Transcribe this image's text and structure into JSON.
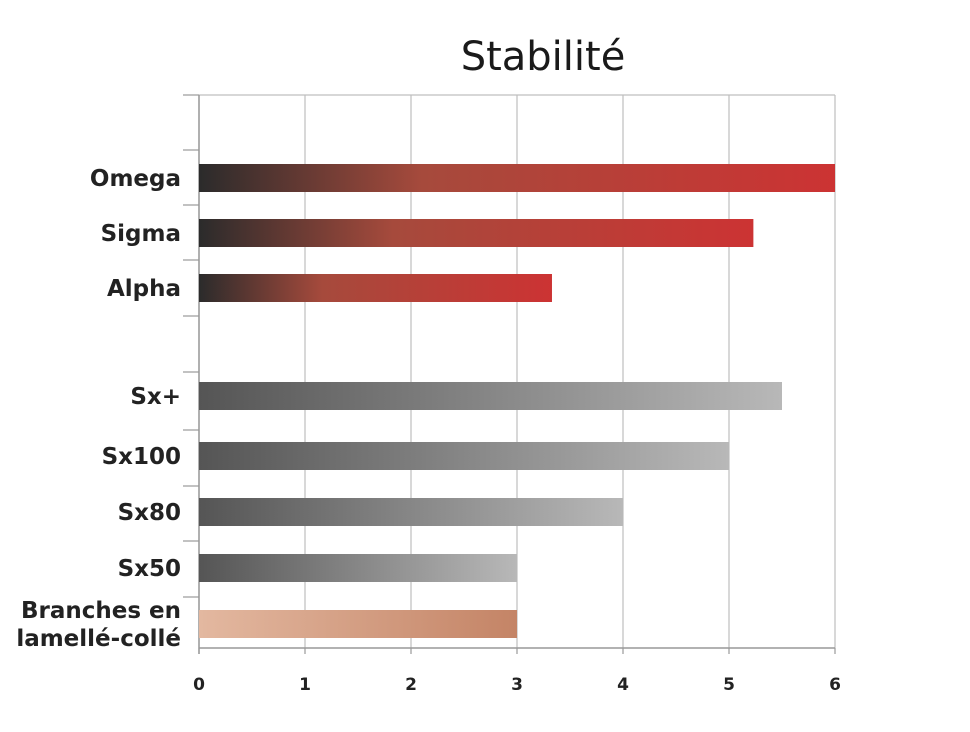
{
  "chart_data": {
    "type": "bar",
    "orientation": "horizontal",
    "title": "Stabilité",
    "xlabel": "",
    "ylabel": "",
    "xlim": [
      0,
      6
    ],
    "xticks": [
      "0",
      "1",
      "2",
      "3",
      "4",
      "5",
      "6"
    ],
    "grid": true,
    "legend": "none",
    "categories": [
      "Omega",
      "Sigma",
      "Alpha",
      "",
      "Sx+",
      "Sx100",
      "Sx80",
      "Sx50",
      "Branches en lamellé-collé"
    ],
    "category_lines": [
      [
        "Omega"
      ],
      [
        "Sigma"
      ],
      [
        "Alpha"
      ],
      [],
      [
        "Sx+"
      ],
      [
        "Sx100"
      ],
      [
        "Sx80"
      ],
      [
        "Sx50"
      ],
      [
        "Branches en",
        "lamellé-collé"
      ]
    ],
    "values": [
      6,
      5.23,
      3.33,
      null,
      5.5,
      5,
      4,
      3,
      3
    ],
    "bar_styles": [
      "red",
      "red",
      "red",
      null,
      "gray",
      "gray",
      "gray",
      "gray",
      "wood"
    ],
    "gradients": {
      "red": [
        "#2b2b2b",
        "#cc3333"
      ],
      "gray": [
        "#555555",
        "#b8b8b8"
      ],
      "wood": [
        "#e3b8a0",
        "#c48466"
      ]
    },
    "grid_color": "#bfbfbf",
    "axis_color": "#999999"
  }
}
